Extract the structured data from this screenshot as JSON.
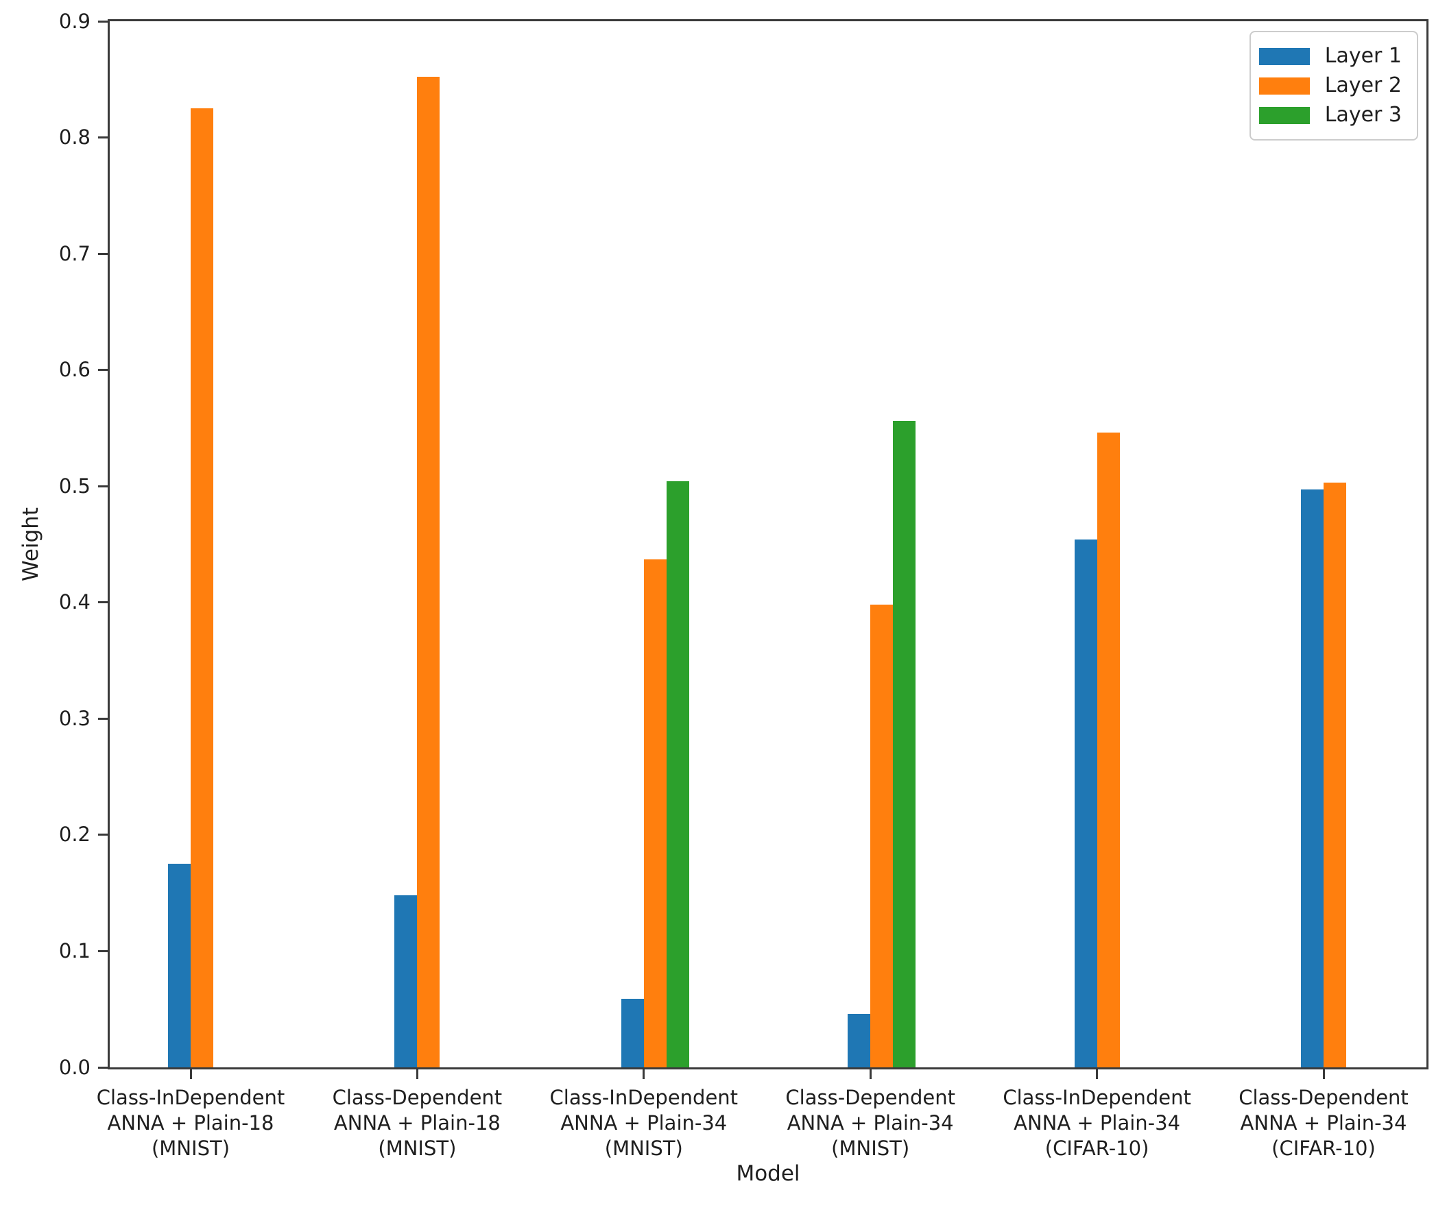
{
  "chart_data": {
    "type": "bar",
    "title": "",
    "xlabel": "Model",
    "ylabel": "Weight",
    "ylim": [
      0.0,
      0.9
    ],
    "yticks": [
      0.0,
      0.1,
      0.2,
      0.3,
      0.4,
      0.5,
      0.6,
      0.7,
      0.8,
      0.9
    ],
    "grid": false,
    "legend_position": "upper right",
    "categories": [
      [
        "Class-InDependent",
        "ANNA + Plain-18",
        "(MNIST)"
      ],
      [
        "Class-Dependent",
        "ANNA + Plain-18",
        "(MNIST)"
      ],
      [
        "Class-InDependent",
        "ANNA + Plain-34",
        "(MNIST)"
      ],
      [
        "Class-Dependent",
        "ANNA + Plain-34",
        "(MNIST)"
      ],
      [
        "Class-InDependent",
        "ANNA + Plain-34",
        "(CIFAR-10)"
      ],
      [
        "Class-Dependent",
        "ANNA + Plain-34",
        "(CIFAR-10)"
      ]
    ],
    "series": [
      {
        "name": "Layer 1",
        "color": "#1f77b4",
        "values": [
          0.175,
          0.148,
          0.059,
          0.046,
          0.454,
          0.497
        ]
      },
      {
        "name": "Layer 2",
        "color": "#ff7f0e",
        "values": [
          0.825,
          0.852,
          0.437,
          0.398,
          0.546,
          0.503
        ]
      },
      {
        "name": "Layer 3",
        "color": "#2ca02c",
        "values": [
          null,
          null,
          0.504,
          0.556,
          null,
          null
        ]
      }
    ]
  }
}
